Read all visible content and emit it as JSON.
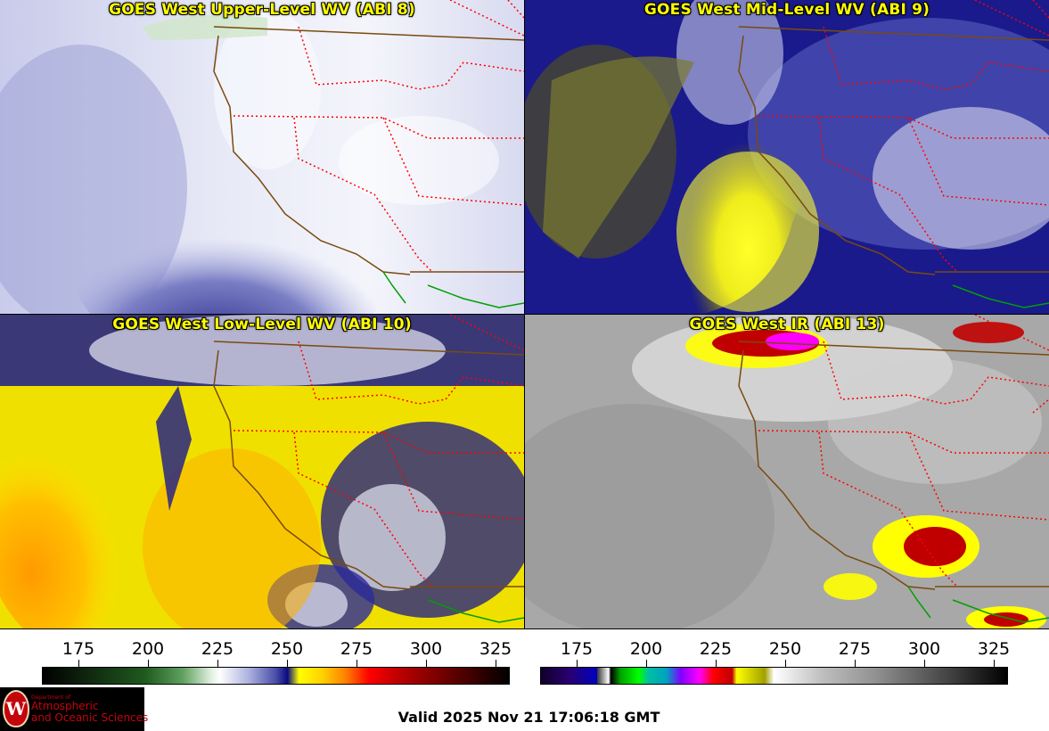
{
  "panels": [
    {
      "title": "GOES West Upper-Level WV (ABI 8)"
    },
    {
      "title": "GOES West Mid-Level WV (ABI 9)"
    },
    {
      "title": "GOES West Low-Level WV (ABI 10)"
    },
    {
      "title": "GOES West IR (ABI 13)"
    }
  ],
  "colorbars": {
    "wv": {
      "ticks": [
        "175",
        "200",
        "225",
        "250",
        "275",
        "300",
        "325"
      ]
    },
    "ir": {
      "ticks": [
        "175",
        "200",
        "225",
        "250",
        "275",
        "300",
        "325"
      ]
    }
  },
  "valid_time": "Valid 2025 Nov 21 17:06:18 GMT",
  "logo": {
    "dept": "Department of",
    "line1": "Atmospheric",
    "line2": "and Oceanic Sciences",
    "seal_letter": "W"
  },
  "colors": {
    "title": "#ffff00",
    "state_lines": "#ff0000",
    "coast_lines": "#7a4a10",
    "mexico_border": "#00a000"
  }
}
